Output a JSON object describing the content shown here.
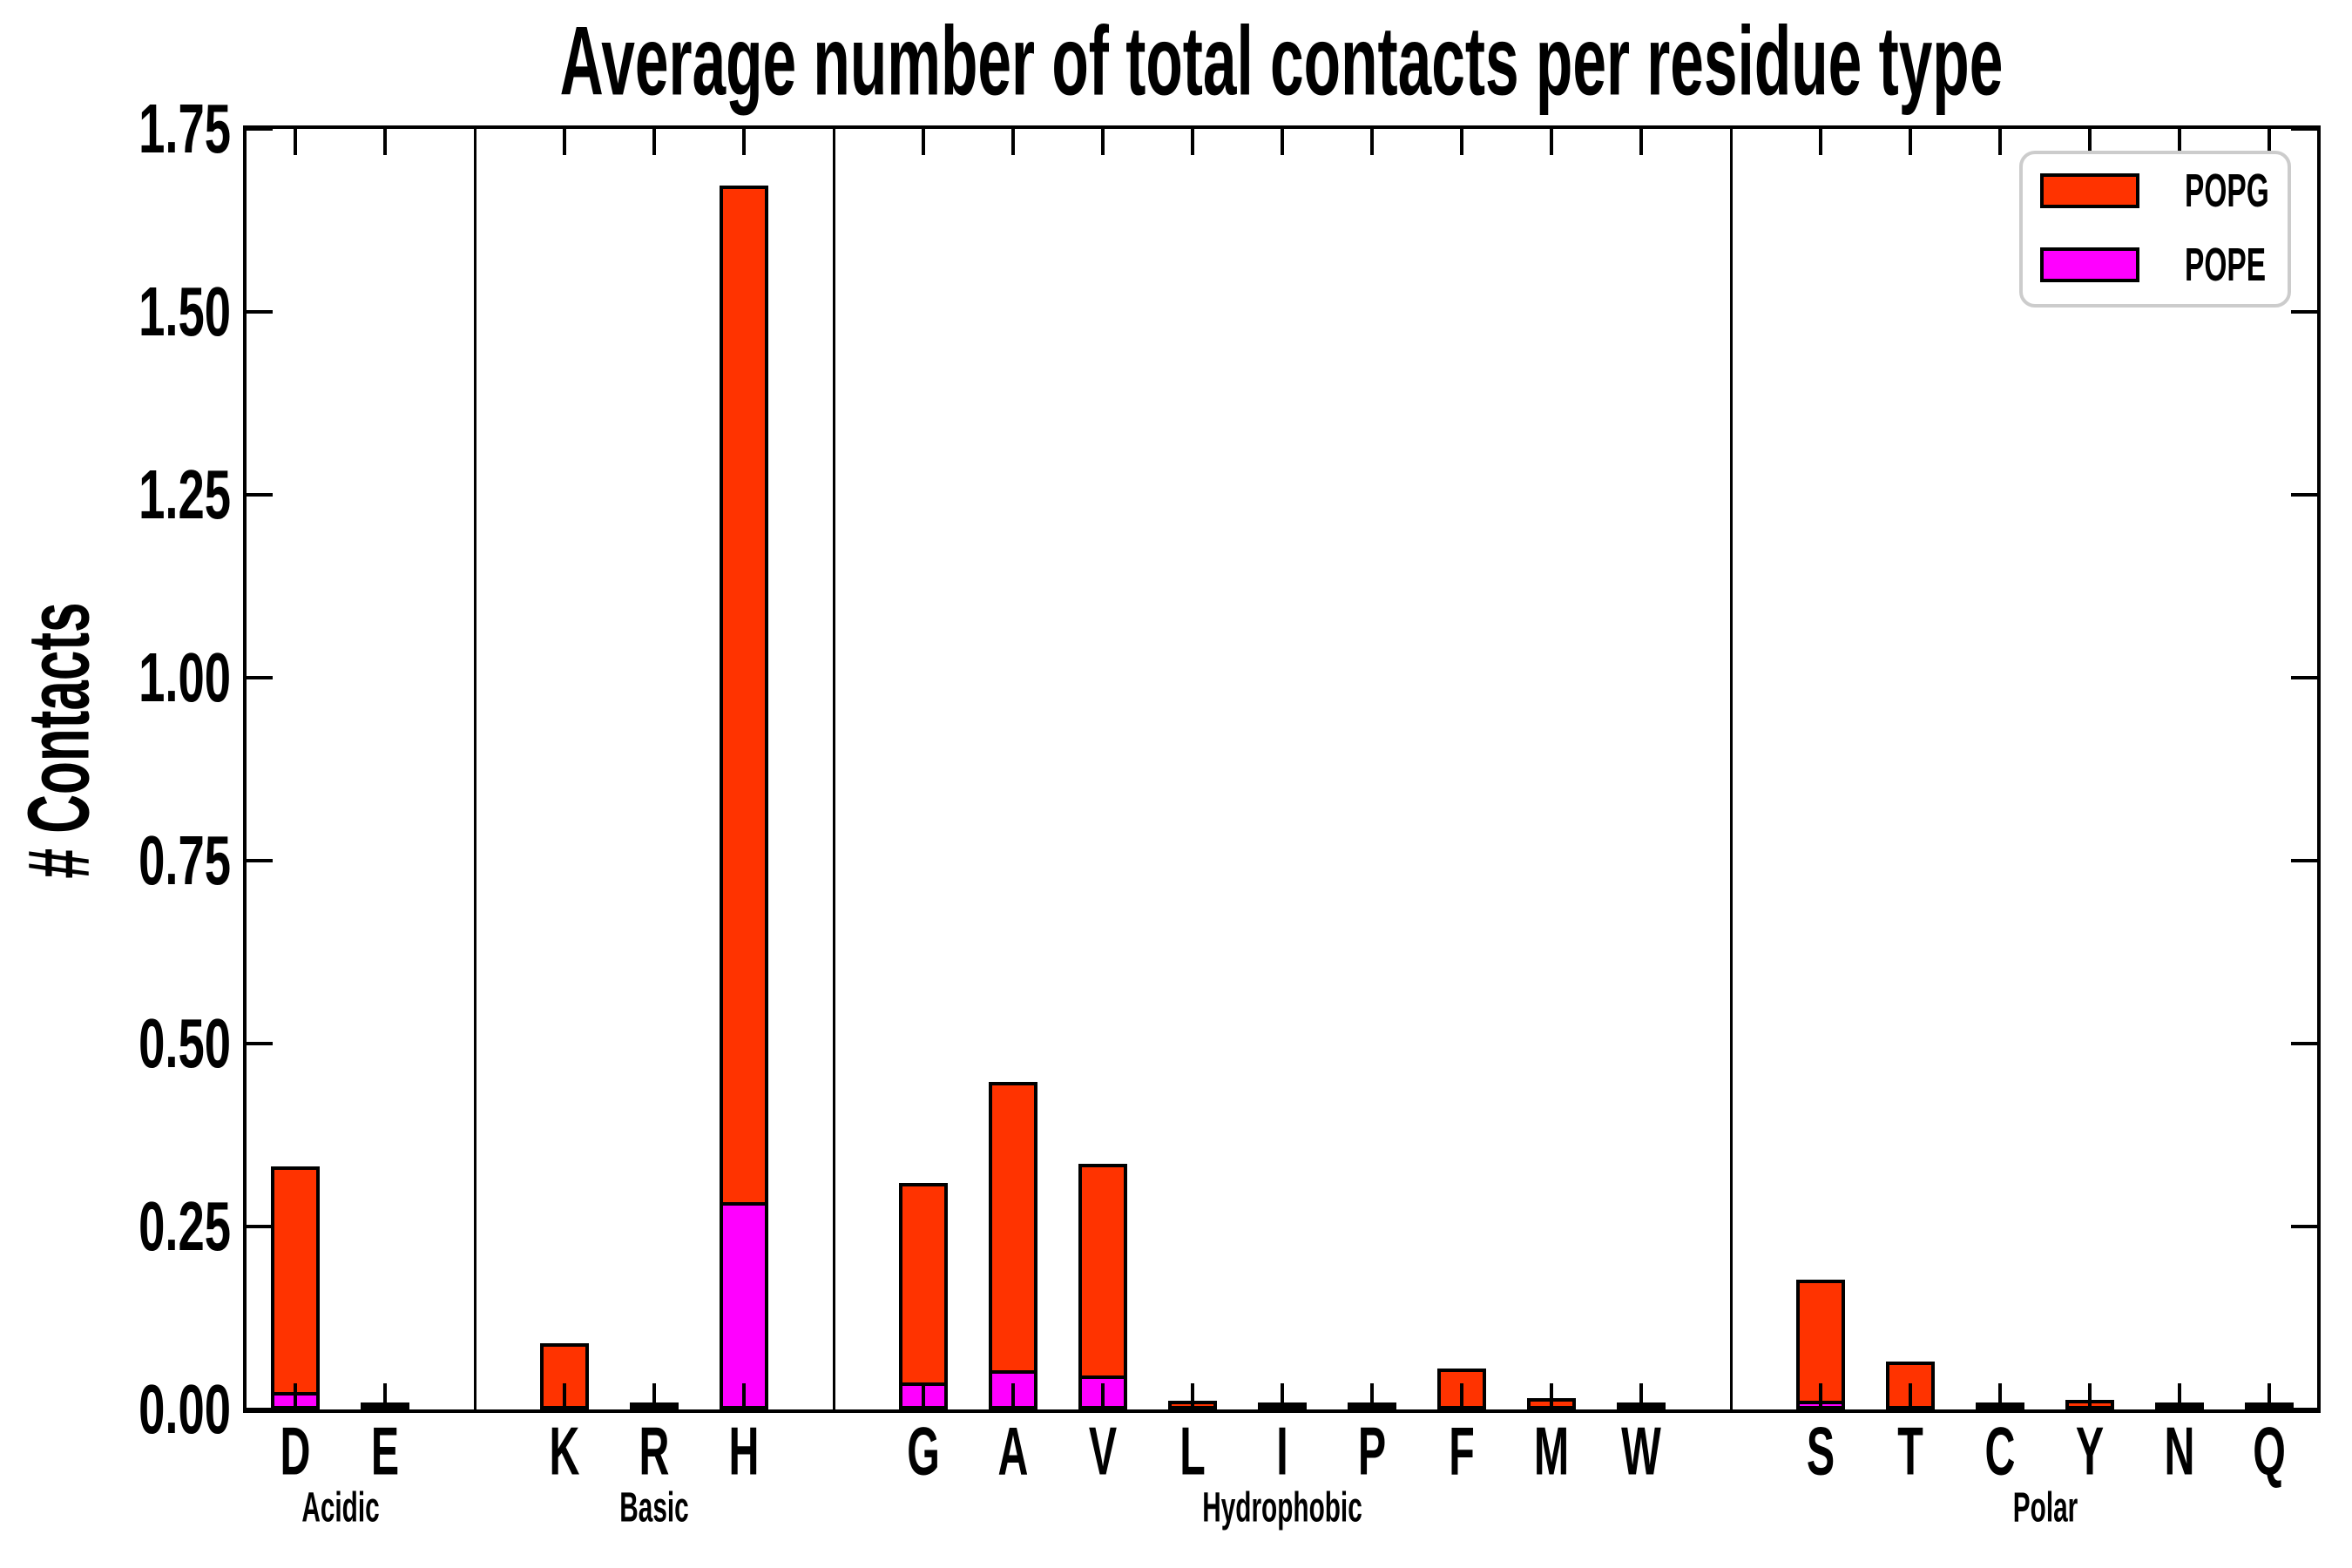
{
  "title": "Average number of total contacts per residue type",
  "y_axis": {
    "label": "# Contacts",
    "tick_labels": [
      "0.00",
      "0.25",
      "0.50",
      "0.75",
      "1.00",
      "1.25",
      "1.50",
      "1.75"
    ],
    "min": 0,
    "max": 1.75
  },
  "legend": {
    "items": [
      {
        "label": "POPG",
        "color": "#FF3300"
      },
      {
        "label": "POPE",
        "color": "#FF00FF"
      }
    ]
  },
  "colors": {
    "popg": "#FF3300",
    "pope": "#FF00FF",
    "axis": "#000000",
    "legend_border": "#cccccc"
  },
  "chart_data": {
    "type": "bar",
    "stacked": true,
    "title": "Average number of total contacts per residue type",
    "xlabel": "",
    "ylabel": "# Contacts",
    "ylim": [
      0,
      1.75
    ],
    "ytick_step": 0.25,
    "grid": false,
    "legend_position": "upper right",
    "categories": [
      "D",
      "E",
      "K",
      "R",
      "H",
      "G",
      "A",
      "V",
      "L",
      "I",
      "P",
      "F",
      "M",
      "W",
      "S",
      "T",
      "C",
      "Y",
      "N",
      "Q"
    ],
    "groups": [
      {
        "label": "Acidic",
        "categories": [
          "D",
          "E"
        ]
      },
      {
        "label": "Basic",
        "categories": [
          "K",
          "R",
          "H"
        ]
      },
      {
        "label": "Hydrophobic",
        "categories": [
          "G",
          "A",
          "V",
          "L",
          "I",
          "P",
          "F",
          "M",
          "W"
        ]
      },
      {
        "label": "Polar",
        "categories": [
          "S",
          "T",
          "C",
          "Y",
          "N",
          "Q"
        ]
      }
    ],
    "series": [
      {
        "name": "POPE",
        "color": "#FF00FF",
        "values": [
          0.024,
          0,
          0,
          0,
          0.283,
          0.037,
          0.054,
          0.046,
          0,
          0,
          0,
          0,
          0,
          0,
          0.012,
          0,
          0,
          0,
          0,
          0
        ]
      },
      {
        "name": "POPG",
        "color": "#FF3300",
        "values": [
          0.308,
          0.005,
          0.09,
          0.003,
          1.39,
          0.273,
          0.394,
          0.29,
          0.012,
          0.002,
          0.002,
          0.056,
          0.015,
          0.002,
          0.165,
          0.065,
          0.004,
          0.013,
          0.004,
          0.006
        ]
      }
    ],
    "totals": [
      0.33,
      0.005,
      0.09,
      0.003,
      1.67,
      0.31,
      0.45,
      0.34,
      0.012,
      0.002,
      0.002,
      0.056,
      0.015,
      0.002,
      0.18,
      0.065,
      0.004,
      0.013,
      0.004,
      0.006
    ]
  }
}
